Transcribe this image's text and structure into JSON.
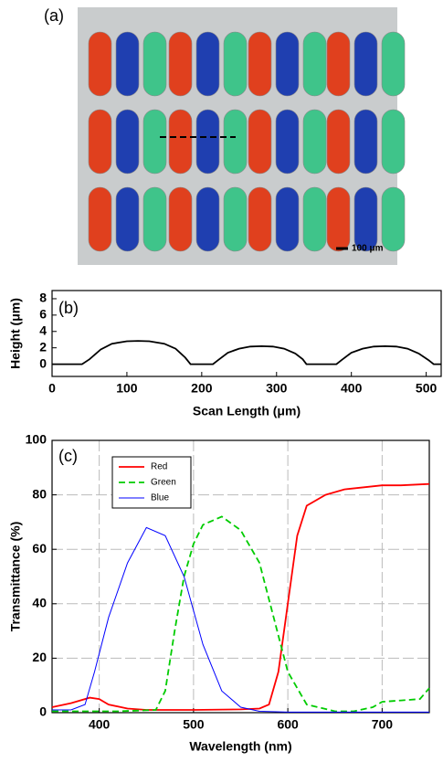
{
  "chart_data": [
    {
      "type": "image",
      "panel_label": "(a)",
      "scale_bar_label": "100 μm"
    },
    {
      "type": "line",
      "panel_label": "(b)",
      "xlabel": "Scan Length (μm)",
      "ylabel": "Height (μm)",
      "x": [
        0,
        40,
        50,
        65,
        80,
        100,
        115,
        130,
        150,
        165,
        178,
        185,
        215,
        222,
        235,
        250,
        265,
        280,
        295,
        310,
        325,
        335,
        340,
        380,
        387,
        400,
        415,
        430,
        445,
        460,
        475,
        490,
        503,
        510,
        520
      ],
      "values": [
        0,
        0,
        0.6,
        1.8,
        2.5,
        2.8,
        2.85,
        2.8,
        2.5,
        1.9,
        0.8,
        0,
        0,
        0.5,
        1.4,
        1.9,
        2.15,
        2.2,
        2.15,
        1.9,
        1.3,
        0.6,
        0,
        0,
        0.5,
        1.4,
        1.9,
        2.15,
        2.2,
        2.15,
        1.9,
        1.3,
        0.5,
        0,
        0
      ],
      "color": "#000000",
      "xlim": [
        0,
        520
      ],
      "ylim": [
        -1.5,
        9
      ],
      "xticks": [
        0,
        100,
        200,
        300,
        400,
        500
      ],
      "yticks": [
        0,
        2,
        4,
        6,
        8
      ],
      "grid": false
    },
    {
      "type": "line",
      "panel_label": "(c)",
      "xlabel": "Wavelength (nm)",
      "ylabel": "Transmittance (%)",
      "xlim": [
        350,
        750
      ],
      "ylim": [
        0,
        100
      ],
      "xticks": [
        400,
        500,
        600,
        700
      ],
      "yticks": [
        0,
        20,
        40,
        60,
        80,
        100
      ],
      "grid": true,
      "series": [
        {
          "name": "Red",
          "color": "#ff0000",
          "linestyle": "solid",
          "x": [
            350,
            370,
            390,
            400,
            410,
            430,
            450,
            500,
            550,
            570,
            580,
            590,
            600,
            610,
            620,
            640,
            660,
            700,
            720,
            750
          ],
          "values": [
            2,
            3.5,
            5.5,
            5,
            3,
            1.5,
            1,
            1,
            1.2,
            1.5,
            3,
            15,
            40,
            65,
            76,
            80,
            82,
            83.5,
            83.5,
            84
          ]
        },
        {
          "name": "Green",
          "color": "#00cc00",
          "linestyle": "dashed",
          "x": [
            350,
            420,
            460,
            470,
            480,
            490,
            500,
            510,
            530,
            550,
            570,
            585,
            600,
            620,
            650,
            670,
            690,
            700,
            720,
            740,
            750
          ],
          "values": [
            0.5,
            0.5,
            1,
            8,
            30,
            50,
            62,
            69,
            72,
            67,
            55,
            35,
            15,
            3,
            0.5,
            0.5,
            2,
            4,
            4.5,
            5,
            9
          ]
        },
        {
          "name": "Blue",
          "color": "#0000ff",
          "linestyle": "thin",
          "x": [
            350,
            370,
            385,
            395,
            410,
            430,
            450,
            470,
            490,
            510,
            530,
            550,
            570,
            600,
            750
          ],
          "values": [
            1,
            1,
            3,
            15,
            35,
            55,
            68,
            65,
            50,
            25,
            8,
            2,
            0.5,
            0.2,
            0.2
          ]
        }
      ]
    }
  ]
}
